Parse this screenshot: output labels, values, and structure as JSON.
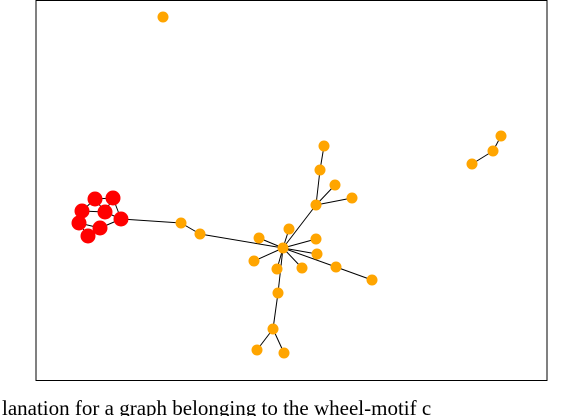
{
  "figure": {
    "caption": "lanation for a graph belonging to the wheel-motif c"
  }
}
